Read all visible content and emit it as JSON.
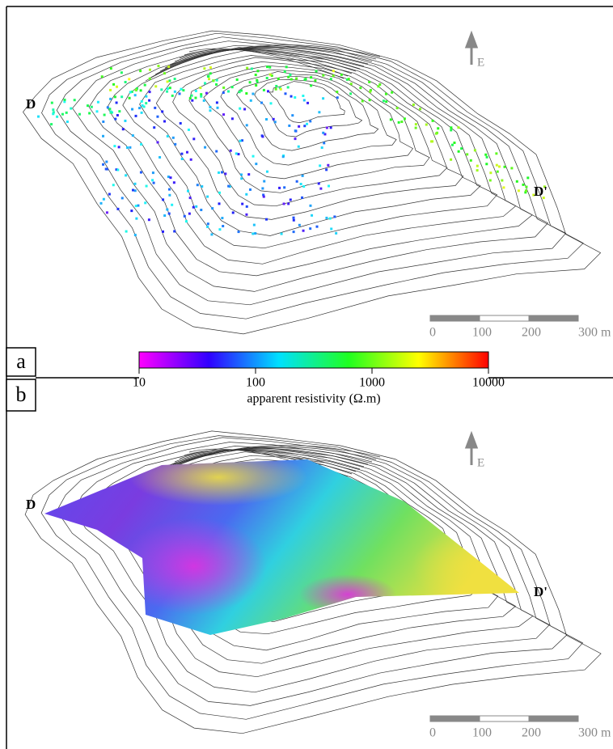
{
  "panels": [
    {
      "label": "a",
      "start_label": "D",
      "end_label": "D'",
      "north_label": "E"
    },
    {
      "label": "b",
      "start_label": "D",
      "end_label": "D'",
      "north_label": "E"
    }
  ],
  "colorbar": {
    "title": "apparent resistivity (Ω.m)",
    "lim": [
      10,
      10000
    ],
    "ticks": [
      10,
      100,
      1000,
      10000
    ],
    "scale": "log"
  },
  "scale_bar": {
    "ticks": [
      0,
      100,
      200,
      {
        "value": 300,
        "label": "300 m"
      }
    ]
  }
}
